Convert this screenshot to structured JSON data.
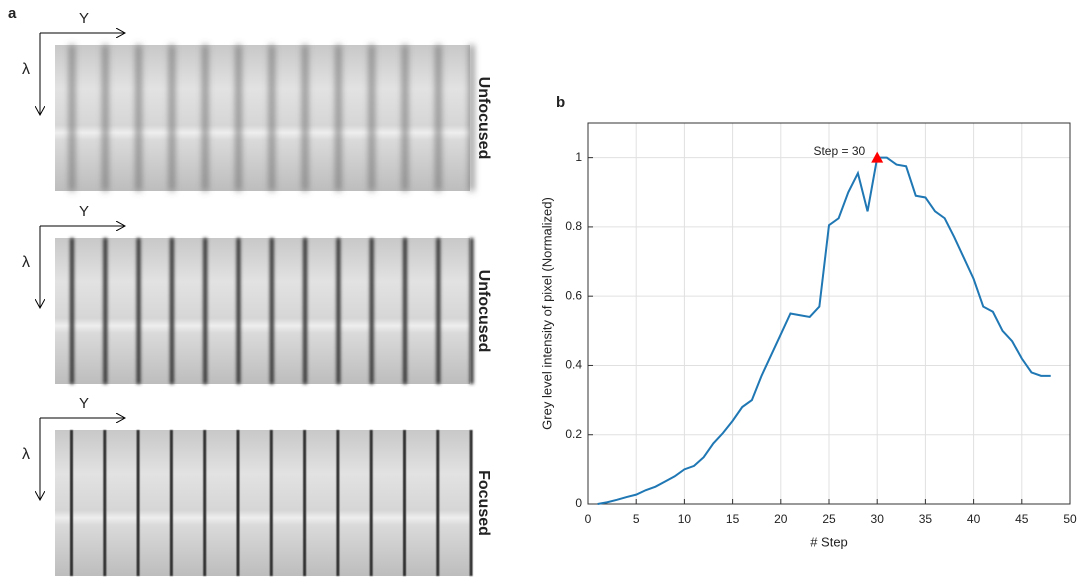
{
  "panel_a": {
    "label": "a",
    "images": [
      {
        "y_label": "Y",
        "lambda_label": "λ",
        "status": "Unfocused"
      },
      {
        "y_label": "Y",
        "lambda_label": "λ",
        "status": "Unfocused"
      },
      {
        "y_label": "Y",
        "lambda_label": "λ",
        "status": "Focused"
      }
    ]
  },
  "chart_data": {
    "type": "line",
    "panel_label": "b",
    "x_label": "# Step",
    "y_label": "Grey level intensity of pixel (Normalized)",
    "x": [
      1,
      2,
      3,
      4,
      5,
      6,
      7,
      8,
      9,
      10,
      11,
      12,
      13,
      14,
      15,
      16,
      17,
      18,
      19,
      20,
      21,
      22,
      23,
      24,
      25,
      26,
      27,
      28,
      29,
      30,
      31,
      32,
      33,
      34,
      35,
      36,
      37,
      38,
      39,
      40,
      41,
      42,
      43,
      44,
      45,
      46,
      47,
      48
    ],
    "values": [
      0,
      0.005,
      0.012,
      0.02,
      0.027,
      0.04,
      0.05,
      0.065,
      0.08,
      0.1,
      0.11,
      0.135,
      0.175,
      0.205,
      0.24,
      0.28,
      0.3,
      0.37,
      0.43,
      0.49,
      0.55,
      0.545,
      0.54,
      0.57,
      0.805,
      0.825,
      0.9,
      0.955,
      0.845,
      1.0,
      1.0,
      0.98,
      0.975,
      0.89,
      0.885,
      0.845,
      0.825,
      0.77,
      0.71,
      0.65,
      0.57,
      0.555,
      0.5,
      0.47,
      0.42,
      0.38,
      0.37,
      0.37
    ],
    "color": "#1f77b4",
    "marker": {
      "x": 30,
      "y": 1.0,
      "color": "#ff0000"
    },
    "annotation": "Step = 30",
    "xlim": [
      0,
      50
    ],
    "xticks": [
      0,
      5,
      10,
      15,
      20,
      25,
      30,
      35,
      40,
      45,
      50
    ],
    "ylim": [
      0,
      1.1
    ],
    "yticks": [
      0,
      0.2,
      0.4,
      0.6,
      0.8,
      1
    ],
    "grid": true
  }
}
